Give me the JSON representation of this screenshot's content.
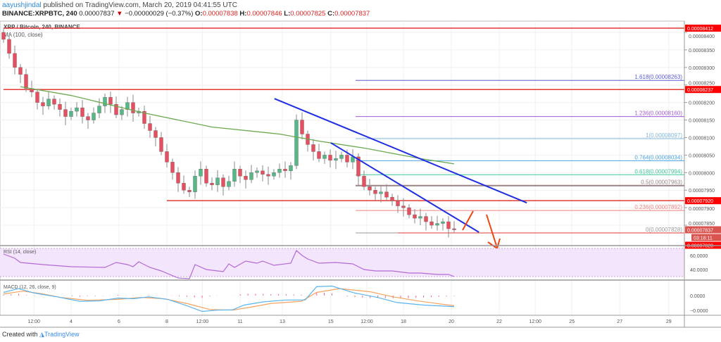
{
  "header": {
    "user": "aayushjindal",
    "published": "published on TradingView.com, March 20, 2019 04:41:55 UTC",
    "symbol": "BINANCE:XRPBTC, 240",
    "last": "0.00007837",
    "change": "−0.00000029 (−0.37%)",
    "o_label": "O:",
    "o": "0.00007838",
    "h_label": "H:",
    "h": "0.00007846",
    "l_label": "L:",
    "l": "0.00007825",
    "c_label": "C:",
    "c": "0.00007837"
  },
  "footer": {
    "created": "Created with",
    "brand": "TradingView"
  },
  "colors": {
    "up": "#53b987",
    "down": "#eb4d5c",
    "ma": "#6aaa4f",
    "trend": "#1f2fe0",
    "hline": "#e53935",
    "rsi": "#b36ad6",
    "macd": "#5ab4f0",
    "signal": "#f5a25d",
    "hist": "#f06292"
  },
  "chart_data": {
    "type": "candlestick",
    "title": "XRP / Bitcoin, 240, BINANCE",
    "ma_label": "MA (100, close)",
    "ylim": [
      7800,
      8440
    ],
    "y_ticks": [
      8400,
      8350,
      8300,
      8250,
      8200,
      8150,
      8100,
      8050,
      8000,
      7950,
      7900,
      7850
    ],
    "y_unit_scale": "1e-8 BTC",
    "closes": [
      8380,
      8340,
      8300,
      8280,
      8240,
      8230,
      8200,
      8190,
      8210,
      8195,
      8180,
      8160,
      8175,
      8185,
      8160,
      8150,
      8170,
      8190,
      8215,
      8195,
      8165,
      8180,
      8200,
      8170,
      8175,
      8140,
      8120,
      8100,
      8060,
      8030,
      8000,
      7970,
      7950,
      7945,
      7990,
      8010,
      7970,
      7965,
      7985,
      7960,
      7975,
      8010,
      7990,
      7980,
      8000,
      8005,
      7995,
      7990,
      8000,
      8010,
      8005,
      8020,
      8150,
      8110,
      8080,
      8060,
      8040,
      8050,
      8035,
      8040,
      8050,
      8030,
      8045,
      7990,
      7960,
      7950,
      7940,
      7945,
      7930,
      7920,
      7905,
      7900,
      7880,
      7870,
      7875,
      7860,
      7850,
      7855,
      7860,
      7840,
      7837
    ],
    "ma100": [
      [
        3,
        8245
      ],
      [
        12,
        8220
      ],
      [
        25,
        8170
      ],
      [
        37,
        8130
      ],
      [
        49,
        8110
      ],
      [
        56,
        8090
      ],
      [
        64,
        8070
      ],
      [
        74,
        8040
      ],
      [
        80,
        8025
      ]
    ],
    "trendlines": [
      [
        [
          48.1,
          8211
        ],
        [
          92.9,
          7914
        ]
      ],
      [
        [
          58.1,
          8085
        ],
        [
          84.4,
          7830
        ]
      ]
    ],
    "price_lines": [
      {
        "price": 8412,
        "label": "0.00008412",
        "from": 0
      },
      {
        "price": 8237,
        "label": "0.00008237",
        "from": 0
      },
      {
        "price": 7920,
        "label": "0.00007920",
        "from": 29
      }
    ],
    "current": {
      "price": 7837,
      "label": "0.00007837",
      "countdown": "03:18:11"
    },
    "low_line": {
      "price": 7828,
      "label": "0.00007828",
      "from": 70
    },
    "fib": [
      {
        "level": "1.618",
        "price": 8263,
        "text": "1.618(0.00008263)",
        "color": "#5b5bd6"
      },
      {
        "level": "1.236",
        "price": 8160,
        "text": "1.236(0.00008160)",
        "color": "#a35ad6"
      },
      {
        "level": "1",
        "price": 8097,
        "text": "1(0.00008097)",
        "color": "#7fb8dc"
      },
      {
        "level": "0.764",
        "price": 8034,
        "text": "0.764(0.00008034)",
        "color": "#4aa3df"
      },
      {
        "level": "0.618",
        "price": 7994,
        "text": "0.618(0.00007994)",
        "color": "#3fc79a"
      },
      {
        "level": "0.5",
        "price": 7963,
        "text": "0.5(0.00007963)",
        "color": "#9c8484"
      },
      {
        "level": "0.236",
        "price": 7892,
        "text": "0.236(0.00007892)",
        "color": "#f08080"
      },
      {
        "level": "0",
        "price": 7828,
        "text": "0(0.00007828)",
        "color": "#999999"
      }
    ],
    "rsi": {
      "label": "RSI (14, close)",
      "ticks": [
        "60.0000",
        "40.0000"
      ],
      "band": [
        30,
        70
      ],
      "points": [
        [
          0,
          62
        ],
        [
          2,
          56
        ],
        [
          3,
          50
        ],
        [
          7,
          47
        ],
        [
          12,
          44
        ],
        [
          18,
          43
        ],
        [
          20,
          50
        ],
        [
          22,
          47
        ],
        [
          23,
          44
        ],
        [
          24,
          51
        ],
        [
          26,
          43
        ],
        [
          28,
          38
        ],
        [
          31,
          28
        ],
        [
          33,
          27
        ],
        [
          34,
          47
        ],
        [
          36,
          40
        ],
        [
          39,
          37
        ],
        [
          40,
          48
        ],
        [
          41,
          43
        ],
        [
          43,
          52
        ],
        [
          45,
          49
        ],
        [
          46,
          52
        ],
        [
          48,
          46
        ],
        [
          51,
          49
        ],
        [
          52,
          67
        ],
        [
          53,
          60
        ],
        [
          54,
          55
        ],
        [
          56,
          49
        ],
        [
          59,
          50
        ],
        [
          62,
          48
        ],
        [
          64,
          40
        ],
        [
          66,
          38
        ],
        [
          69,
          38
        ],
        [
          72,
          35
        ],
        [
          74,
          35
        ],
        [
          77,
          33
        ],
        [
          79,
          33
        ],
        [
          80,
          30
        ]
      ]
    },
    "macd": {
      "label": "MACD (12, 26, close, 9)",
      "ticks": [
        "0.0000",
        "−0.0000"
      ],
      "macd": [
        [
          0,
          10
        ],
        [
          4,
          22
        ],
        [
          8,
          8
        ],
        [
          14,
          -4
        ],
        [
          20,
          -18
        ],
        [
          25,
          -17
        ],
        [
          30,
          -8
        ],
        [
          34,
          -10
        ],
        [
          38,
          -4
        ],
        [
          43,
          -12
        ],
        [
          48,
          -32
        ],
        [
          52,
          -50
        ],
        [
          56,
          -46
        ],
        [
          60,
          -45
        ],
        [
          63,
          -30
        ],
        [
          68,
          -20
        ],
        [
          74,
          -14
        ],
        [
          79,
          -14
        ],
        [
          82,
          28
        ],
        [
          86,
          30
        ],
        [
          92,
          8
        ],
        [
          98,
          -6
        ],
        [
          103,
          -22
        ],
        [
          110,
          -30
        ],
        [
          118,
          -35
        ]
      ],
      "signal": [
        [
          0,
          5
        ],
        [
          5,
          14
        ],
        [
          10,
          6
        ],
        [
          15,
          -6
        ],
        [
          22,
          -15
        ],
        [
          30,
          -12
        ],
        [
          36,
          -6
        ],
        [
          42,
          -10
        ],
        [
          48,
          -25
        ],
        [
          54,
          -44
        ],
        [
          60,
          -46
        ],
        [
          64,
          -38
        ],
        [
          70,
          -25
        ],
        [
          78,
          -18
        ],
        [
          82,
          10
        ],
        [
          88,
          22
        ],
        [
          96,
          12
        ],
        [
          102,
          -4
        ],
        [
          108,
          -16
        ],
        [
          114,
          -26
        ],
        [
          118,
          -32
        ]
      ],
      "hist_scale": "relative"
    },
    "x_ticks": [
      [
        5.4,
        "12:00"
      ],
      [
        12,
        "4"
      ],
      [
        20.5,
        "6"
      ],
      [
        29,
        "8"
      ],
      [
        35.3,
        "12:00"
      ],
      [
        42,
        "11"
      ],
      [
        49.5,
        "13"
      ],
      [
        58.1,
        "15"
      ],
      [
        64.5,
        "12:00"
      ],
      [
        71,
        "18"
      ],
      [
        79.5,
        "20"
      ],
      [
        88,
        "22"
      ],
      [
        94.4,
        "12:00"
      ],
      [
        100.9,
        "25"
      ],
      [
        109.4,
        "27"
      ],
      [
        118.1,
        "29"
      ]
    ]
  }
}
